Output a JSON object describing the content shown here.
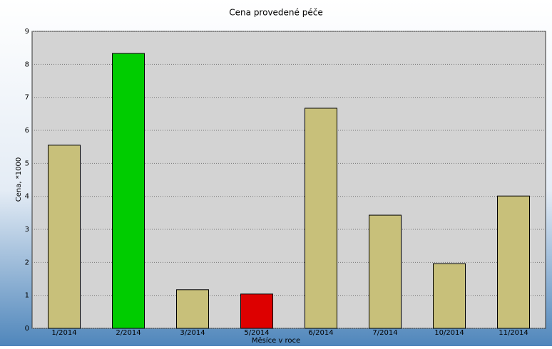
{
  "chart_data": {
    "type": "bar",
    "title": "Cena provedené péče",
    "x_label": "Měsíce v roce",
    "y_label": "Cena, *1000",
    "categories": [
      "1/2014",
      "2/2014",
      "3/2014",
      "5/2014",
      "6/2014",
      "7/2014",
      "10/2014",
      "11/2014"
    ],
    "values": [
      5.55,
      8.33,
      1.17,
      1.04,
      6.67,
      3.43,
      1.96,
      4.01
    ],
    "colors": [
      "#c8c07a",
      "#00cc00",
      "#c8c07a",
      "#dd0000",
      "#c8c07a",
      "#c8c07a",
      "#c8c07a",
      "#c8c07a"
    ],
    "ylim": [
      0,
      9
    ],
    "yticks": [
      0,
      1,
      2,
      3,
      4,
      5,
      6,
      7,
      8,
      9
    ],
    "grid": true
  }
}
